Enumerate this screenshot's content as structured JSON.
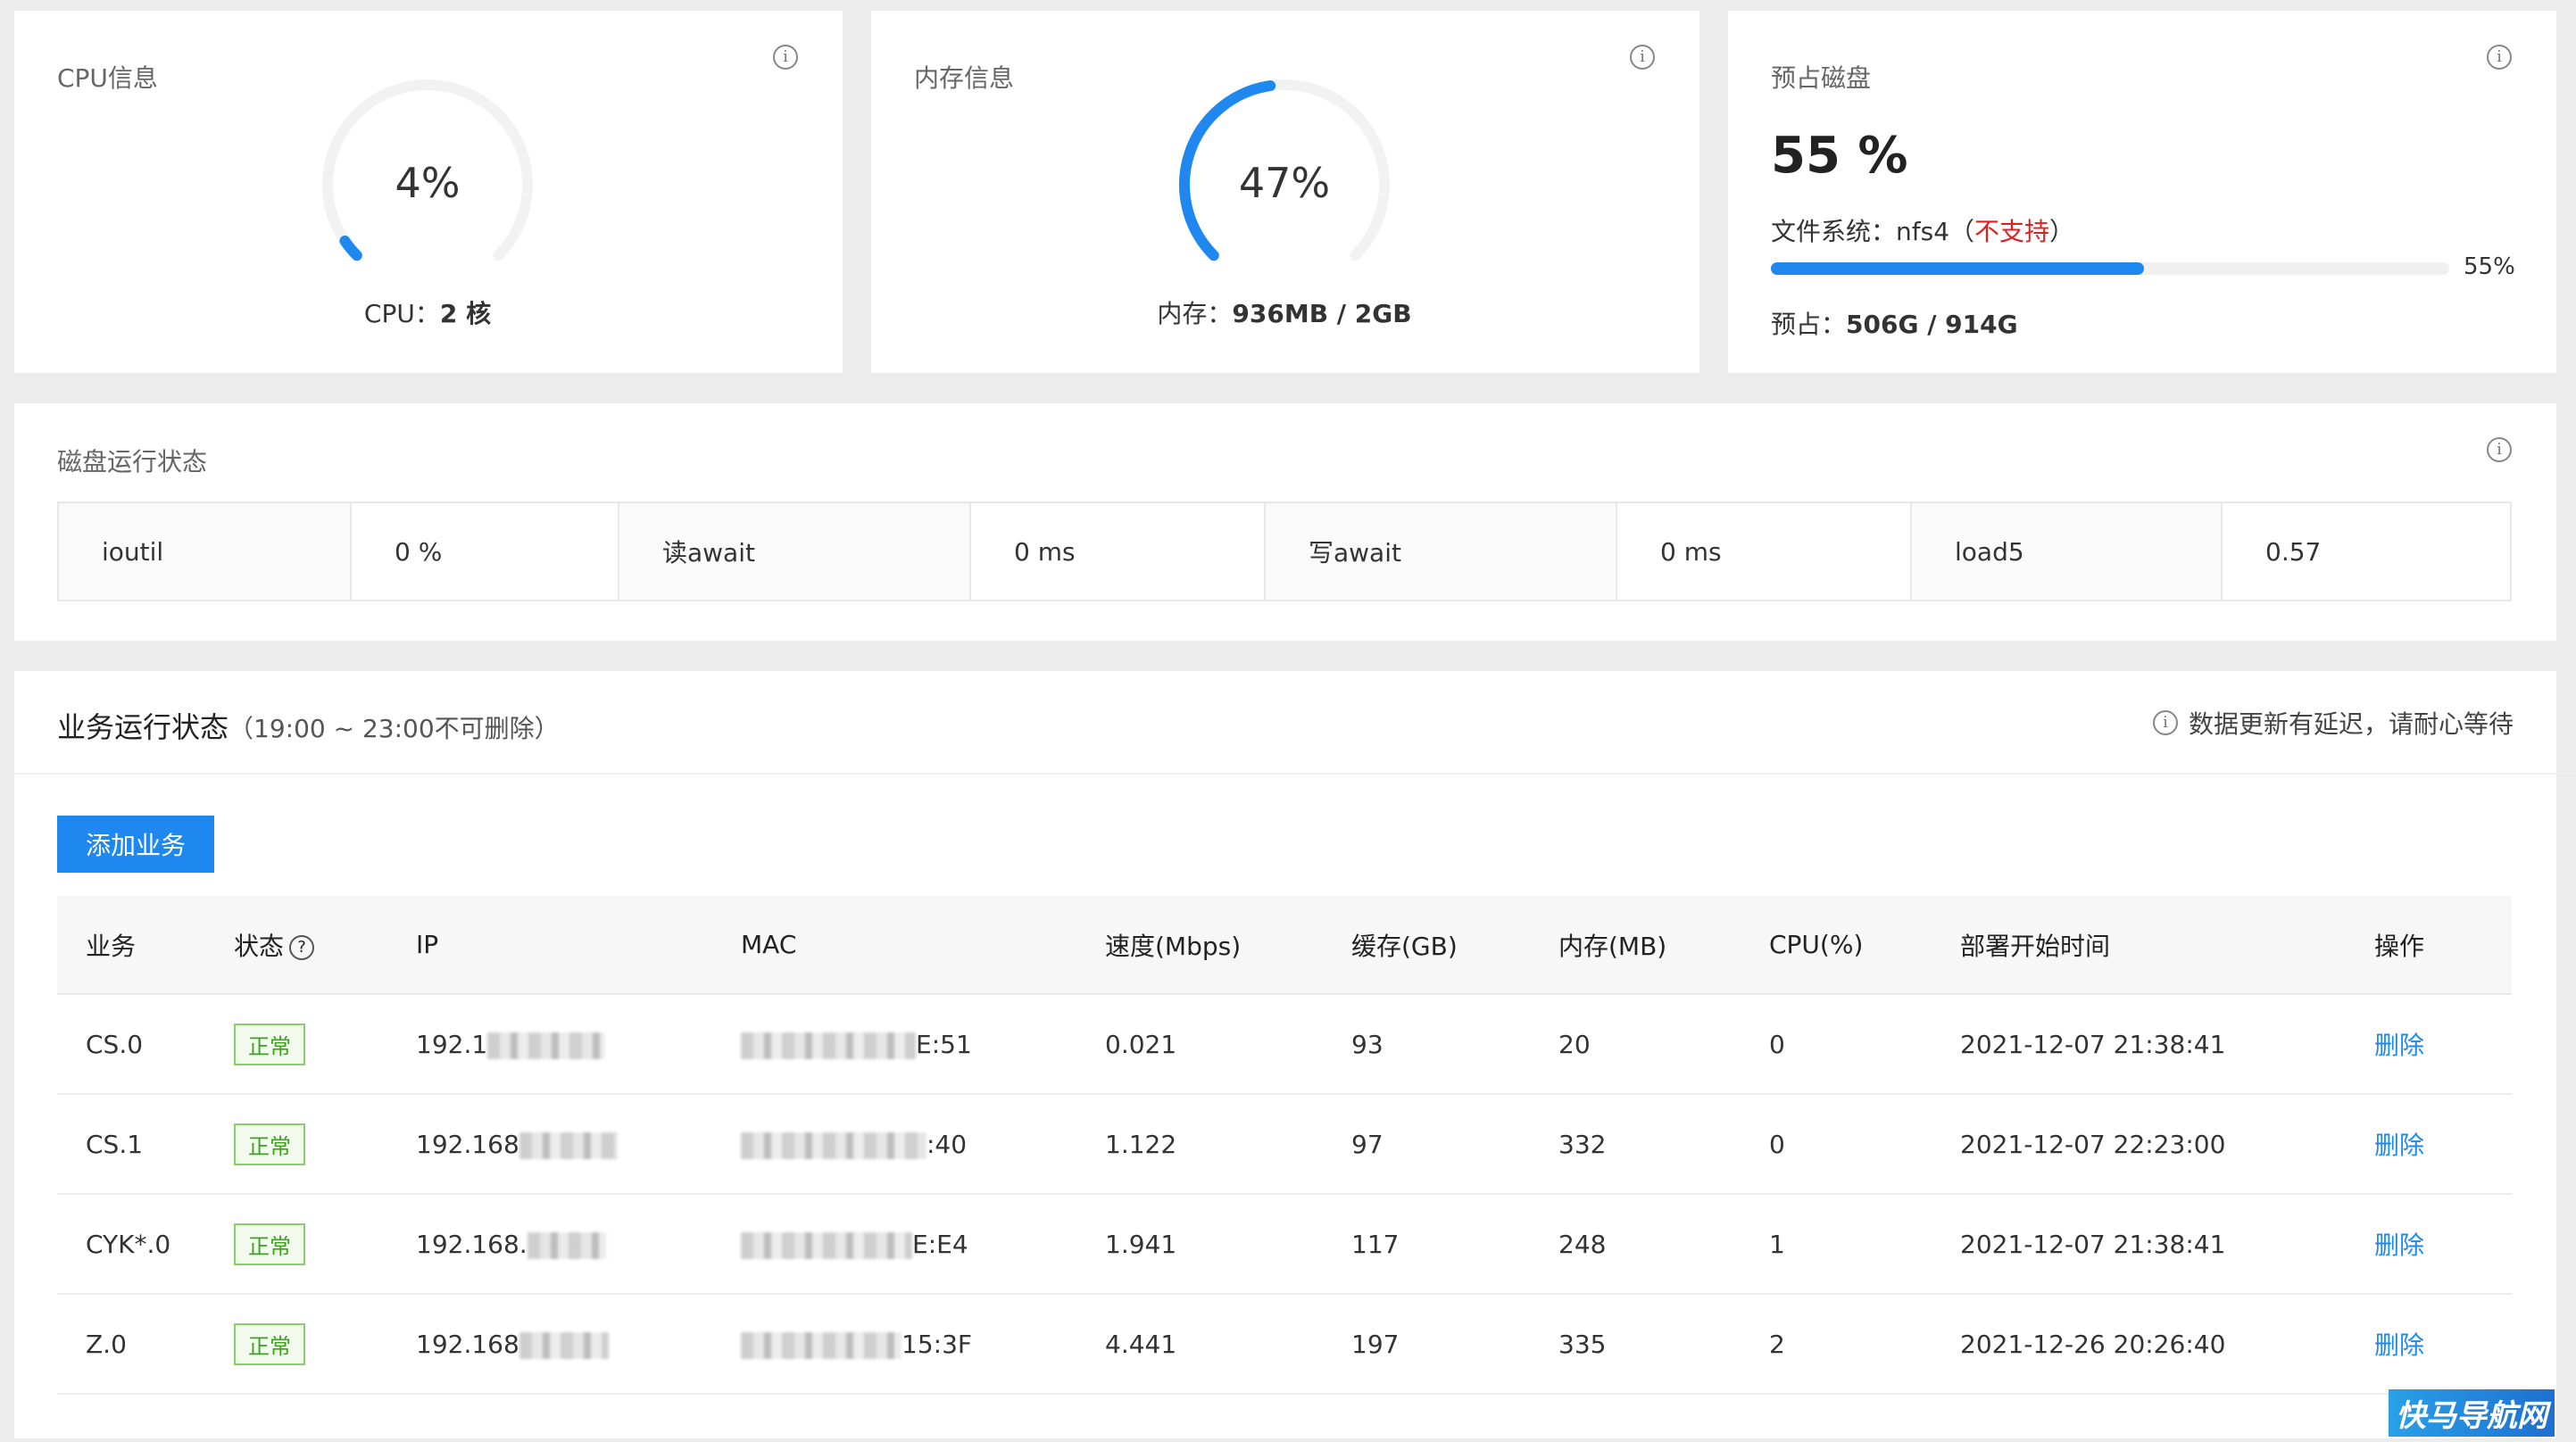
{
  "cpu": {
    "title": "CPU信息",
    "percent_label": "4%",
    "percent": 4,
    "core_label": "CPU：",
    "core_value": "2 核"
  },
  "memory": {
    "title": "内存信息",
    "percent_label": "47%",
    "percent": 47,
    "usage_label": "内存：",
    "usage_value": "936MB / 2GB"
  },
  "disk": {
    "title": "预占磁盘",
    "percent_label": "55 %",
    "percent": 55,
    "fs_label": "文件系统：nfs4（",
    "fs_warn": "不支持",
    "fs_close": "）",
    "progress_label": "55%",
    "reserve_label": "预占：",
    "reserve_value": "506G / 914G"
  },
  "disk_status": {
    "title": "磁盘运行状态",
    "cells": [
      {
        "key": "ioutil",
        "value": "0 %"
      },
      {
        "key": "读await",
        "value": "0 ms"
      },
      {
        "key": "写await",
        "value": "0 ms"
      },
      {
        "key": "load5",
        "value": "0.57"
      }
    ]
  },
  "business": {
    "title": "业务运行状态",
    "subtitle": "（19:00 ~ 23:00不可删除）",
    "note": "数据更新有延迟，请耐心等待",
    "add_button": "添加业务",
    "columns": [
      "业务",
      "状态",
      "IP",
      "MAC",
      "速度(Mbps)",
      "缓存(GB)",
      "内存(MB)",
      "CPU(%)",
      "部署开始时间",
      "操作"
    ],
    "rows": [
      {
        "name": "CS.0",
        "status": "正常",
        "ip": "192.1",
        "mac": "E:51",
        "speed": "0.021",
        "cache": "93",
        "mem": "20",
        "cpu": "0",
        "time": "2021-12-07 21:38:41",
        "action": "删除"
      },
      {
        "name": "CS.1",
        "status": "正常",
        "ip": "192.168",
        "mac": ":40",
        "speed": "1.122",
        "cache": "97",
        "mem": "332",
        "cpu": "0",
        "time": "2021-12-07 22:23:00",
        "action": "删除"
      },
      {
        "name": "CYK*.0",
        "status": "正常",
        "ip": "192.168.",
        "mac": "E:E4",
        "speed": "1.941",
        "cache": "117",
        "mem": "248",
        "cpu": "1",
        "time": "2021-12-07 21:38:41",
        "action": "删除"
      },
      {
        "name": "Z.0",
        "status": "正常",
        "ip": "192.168",
        "mac": "15:3F",
        "speed": "4.441",
        "cache": "197",
        "mem": "335",
        "cpu": "2",
        "time": "2021-12-26 20:26:40",
        "action": "删除"
      }
    ]
  },
  "watermark": "快马导航网",
  "colors": {
    "accent": "#1e88f0",
    "warn": "#e02020",
    "ok": "#3aa31a"
  }
}
